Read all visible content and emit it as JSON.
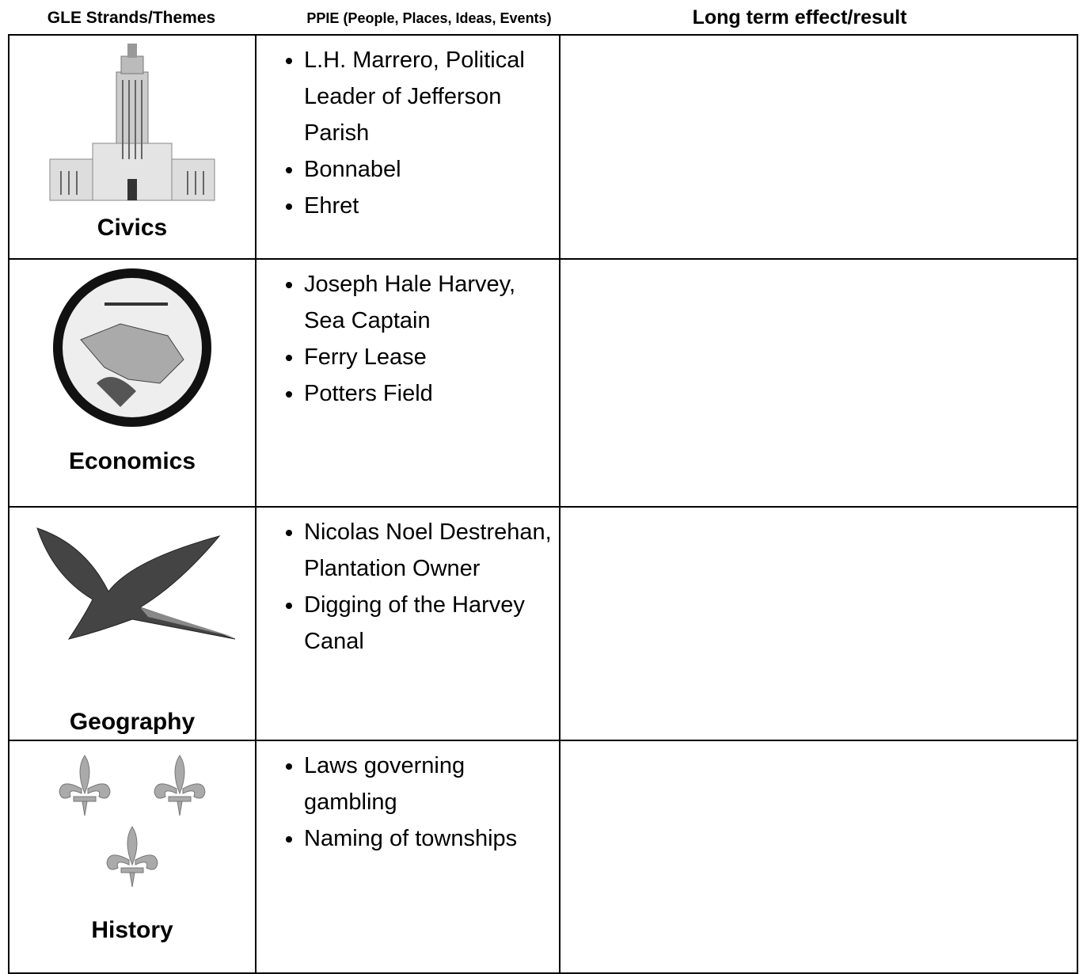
{
  "header": {
    "columns": [
      "GLE Strands/Themes",
      "PPIE (People, Places, Ideas, Events)",
      "Long term effect/result"
    ]
  },
  "table": {
    "rows": [
      {
        "theme": "Civics",
        "items": [
          "L.H. Marrero, Political Leader of Jefferson Parish",
          "Bonnabel",
          "Ehret"
        ]
      },
      {
        "theme": "Economics",
        "items": [
          "Joseph Hale Harvey, Sea Captain",
          "Ferry Lease",
          "Potters Field"
        ]
      },
      {
        "theme": "Geography",
        "items": [
          "Nicolas Noel Destrehan, Plantation Owner",
          "Digging of the Harvey Canal"
        ]
      },
      {
        "theme": "History",
        "items": [
          "Laws governing gambling",
          "Naming of townships"
        ]
      }
    ]
  }
}
